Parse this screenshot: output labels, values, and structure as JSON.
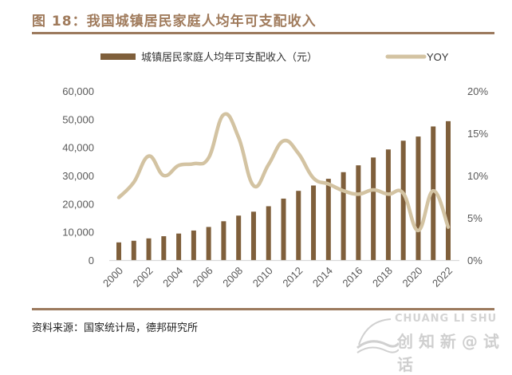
{
  "header": {
    "title": "图 18：我国城镇居民家庭人均年可支配收入"
  },
  "footer": {
    "source": "资料来源：国家统计局，德邦研究所"
  },
  "watermark": {
    "text_en": "CHUANG LI SHU",
    "text_cn": "创 知 新 @ 试 话"
  },
  "colors": {
    "bar": "#7f5f3b",
    "line": "#d3c3a2",
    "axis_text": "#595959",
    "baseline": "#d9d9d9",
    "title": "#a07b5c"
  },
  "chart_data": {
    "type": "bar+line",
    "title": "图 18：我国城镇居民家庭人均年可支配收入",
    "categories": [
      "2000",
      "2001",
      "2002",
      "2003",
      "2004",
      "2005",
      "2006",
      "2007",
      "2008",
      "2009",
      "2010",
      "2011",
      "2012",
      "2013",
      "2014",
      "2015",
      "2016",
      "2017",
      "2018",
      "2019",
      "2020",
      "2021",
      "2022"
    ],
    "x_tick_labels": [
      "2000",
      "2002",
      "2004",
      "2006",
      "2008",
      "2010",
      "2012",
      "2014",
      "2016",
      "2018",
      "2020",
      "2022"
    ],
    "series": [
      {
        "name": "城镇居民家庭人均年可支配收入（元）",
        "type": "bar",
        "axis": "left",
        "values": [
          6280,
          6860,
          7703,
          8472,
          9422,
          10493,
          11759,
          13786,
          15781,
          17175,
          19109,
          21810,
          24565,
          26467,
          28844,
          31195,
          33616,
          36396,
          39251,
          42359,
          43834,
          47412,
          49283
        ]
      },
      {
        "name": "YOY",
        "type": "line",
        "axis": "right",
        "values": [
          7.4,
          9.2,
          12.3,
          10.0,
          11.2,
          11.4,
          12.1,
          17.2,
          14.5,
          8.8,
          11.3,
          14.1,
          12.6,
          9.7,
          9.0,
          8.2,
          7.8,
          8.3,
          7.8,
          7.9,
          3.5,
          8.2,
          3.9
        ]
      }
    ],
    "left_axis": {
      "ylim": [
        0,
        60000
      ],
      "ticks": [
        "0",
        "10,000",
        "20,000",
        "30,000",
        "40,000",
        "50,000",
        "60,000"
      ],
      "tick_values": [
        0,
        10000,
        20000,
        30000,
        40000,
        50000,
        60000
      ]
    },
    "right_axis": {
      "ylim": [
        0,
        20
      ],
      "ticks": [
        "0%",
        "5%",
        "10%",
        "15%",
        "20%"
      ],
      "tick_values": [
        0,
        5,
        10,
        15,
        20
      ]
    },
    "legend": {
      "position": "top",
      "entries": [
        "城镇居民家庭人均年可支配收入（元）",
        "YOY"
      ]
    },
    "grid": false
  }
}
